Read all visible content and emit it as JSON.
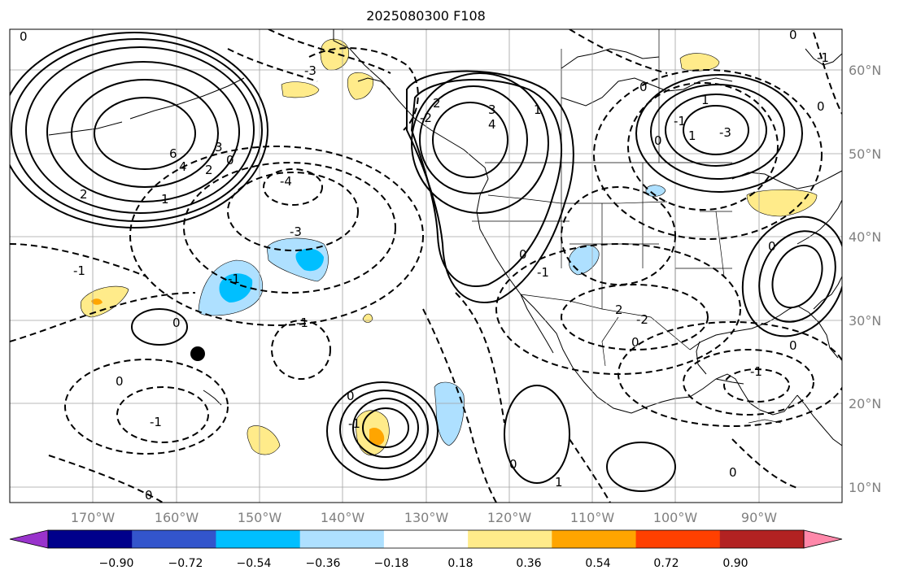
{
  "title": "2025080300 F108",
  "map": {
    "lat_labels": [
      "60°N",
      "50°N",
      "40°N",
      "30°N",
      "20°N",
      "10°N"
    ],
    "lon_labels": [
      "170°W",
      "160°W",
      "150°W",
      "140°W",
      "130°W",
      "120°W",
      "110°W",
      "100°W",
      "90°W"
    ]
  },
  "colorbar": {
    "ticks": [
      "−0.90",
      "−0.72",
      "−0.54",
      "−0.36",
      "−0.18",
      "0.18",
      "0.36",
      "0.54",
      "0.72",
      "0.90"
    ],
    "colors": [
      "#9933cc",
      "#00008b",
      "#3355cc",
      "#00bfff",
      "#aee0ff",
      "#ffffff",
      "#ffeb8a",
      "#ffa500",
      "#ff4000",
      "#b22222",
      "#ff88aa"
    ],
    "extend": "both"
  },
  "contour_labels": [
    "0",
    "2",
    "4",
    "6",
    "3",
    "2",
    "1",
    "0",
    "-3",
    "-4",
    "-3",
    "-1",
    "-1",
    "0",
    "-1",
    "-1",
    "0",
    "-1",
    "0",
    "3",
    "4",
    "1",
    "0",
    "-1",
    "2",
    "-2",
    "0",
    "0",
    "-1",
    "1",
    "1",
    "-1",
    "0",
    "0",
    "-3",
    "-2",
    "0",
    "2",
    "0",
    "0",
    "0",
    "-1",
    "0",
    "1",
    "0"
  ],
  "marker": "station-dot"
}
